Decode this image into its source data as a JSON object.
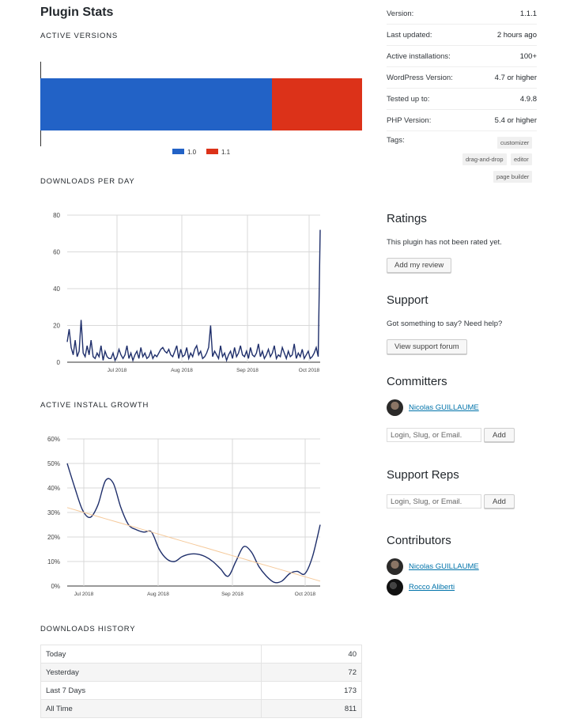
{
  "page_title": "Plugin Stats",
  "sections": {
    "active_versions": "ACTIVE VERSIONS",
    "downloads_per_day": "DOWNLOADS PER DAY",
    "active_install_growth": "ACTIVE INSTALL GROWTH",
    "downloads_history": "DOWNLOADS HISTORY"
  },
  "chart_data": [
    {
      "type": "bar",
      "stacked": true,
      "orientation": "horizontal",
      "series": [
        {
          "name": "1.0",
          "value": 72,
          "color": "#2262c6"
        },
        {
          "name": "1.1",
          "value": 28,
          "color": "#dc3219"
        }
      ],
      "legend": "bottom"
    },
    {
      "type": "line",
      "x_ticks": [
        "Jul 2018",
        "Aug 2018",
        "Sep 2018",
        "Oct 2018"
      ],
      "y_ticks": [
        "0",
        "20",
        "40",
        "60",
        "80"
      ],
      "ylim": [
        0,
        80
      ],
      "grid": true,
      "series": [
        {
          "color": "#1f2f6b",
          "values": [
            11,
            18,
            8,
            4,
            12,
            3,
            6,
            23,
            5,
            3,
            9,
            4,
            12,
            3,
            2,
            5,
            3,
            9,
            1,
            6,
            3,
            2,
            2,
            5,
            1,
            3,
            7,
            4,
            2,
            4,
            9,
            2,
            5,
            1,
            4,
            6,
            2,
            8,
            3,
            5,
            2,
            3,
            6,
            2,
            4,
            3,
            5,
            7,
            8,
            6,
            5,
            7,
            4,
            3,
            6,
            9,
            2,
            7,
            3,
            4,
            8,
            2,
            5,
            3,
            7,
            9,
            4,
            6,
            2,
            3,
            5,
            8,
            20,
            3,
            6,
            4,
            2,
            9,
            3,
            5,
            1,
            4,
            6,
            2,
            8,
            3,
            5,
            9,
            4,
            3,
            6,
            2,
            8,
            4,
            3,
            5,
            10,
            3,
            6,
            2,
            4,
            7,
            3,
            5,
            9,
            2,
            4,
            3,
            8,
            5,
            2,
            6,
            3,
            4,
            10,
            2,
            5,
            3,
            7,
            2,
            4,
            6,
            2,
            3,
            5,
            8,
            3,
            72
          ]
        }
      ]
    },
    {
      "type": "line",
      "x_ticks": [
        "Jul 2018",
        "Aug 2018",
        "Sep 2018",
        "Oct 2018"
      ],
      "y_ticks": [
        "0%",
        "10%",
        "20%",
        "30%",
        "40%",
        "50%",
        "60%"
      ],
      "ylim": [
        0,
        60
      ],
      "grid": true,
      "series": [
        {
          "color": "#1f2f6b",
          "values": [
            50,
            40,
            31,
            28,
            33,
            43,
            42,
            32,
            25,
            23,
            22,
            22,
            15,
            11,
            10,
            12,
            13,
            13,
            12,
            10,
            7,
            4,
            10,
            16,
            14,
            8,
            4,
            1.5,
            2,
            5,
            6,
            5,
            12,
            25
          ]
        },
        {
          "color": "#f5c99a",
          "trend": true,
          "values": [
            32,
            30.5,
            29,
            27.5,
            26,
            24.5,
            23,
            21.5,
            20,
            18.5,
            17,
            15.5,
            14,
            12.5,
            11,
            9.5,
            8,
            6.5,
            5,
            3.5,
            2
          ]
        }
      ]
    }
  ],
  "downloads_history": [
    {
      "label": "Today",
      "value": "40"
    },
    {
      "label": "Yesterday",
      "value": "72"
    },
    {
      "label": "Last 7 Days",
      "value": "173"
    },
    {
      "label": "All Time",
      "value": "811"
    }
  ],
  "meta": [
    {
      "label": "Version:",
      "value": "1.1.1"
    },
    {
      "label": "Last updated:",
      "value": "2 hours ago"
    },
    {
      "label": "Active installations:",
      "value": "100+"
    },
    {
      "label": "WordPress Version:",
      "value": "4.7 or higher"
    },
    {
      "label": "Tested up to:",
      "value": "4.9.8"
    },
    {
      "label": "PHP Version:",
      "value": "5.4 or higher"
    }
  ],
  "tags_label": "Tags:",
  "tags": [
    "customizer",
    "drag-and-drop",
    "editor",
    "page builder"
  ],
  "ratings": {
    "heading": "Ratings",
    "text": "This plugin has not been rated yet.",
    "button": "Add my review"
  },
  "support": {
    "heading": "Support",
    "text": "Got something to say? Need help?",
    "button": "View support forum"
  },
  "committers": {
    "heading": "Committers",
    "people": [
      "Nicolas GUILLAUME"
    ],
    "input_placeholder": "Login, Slug, or Email.",
    "add_button": "Add"
  },
  "support_reps": {
    "heading": "Support Reps",
    "input_placeholder": "Login, Slug, or Email.",
    "add_button": "Add"
  },
  "contributors": {
    "heading": "Contributors",
    "people": [
      "Nicolas GUILLAUME",
      "Rocco Aliberti"
    ]
  }
}
